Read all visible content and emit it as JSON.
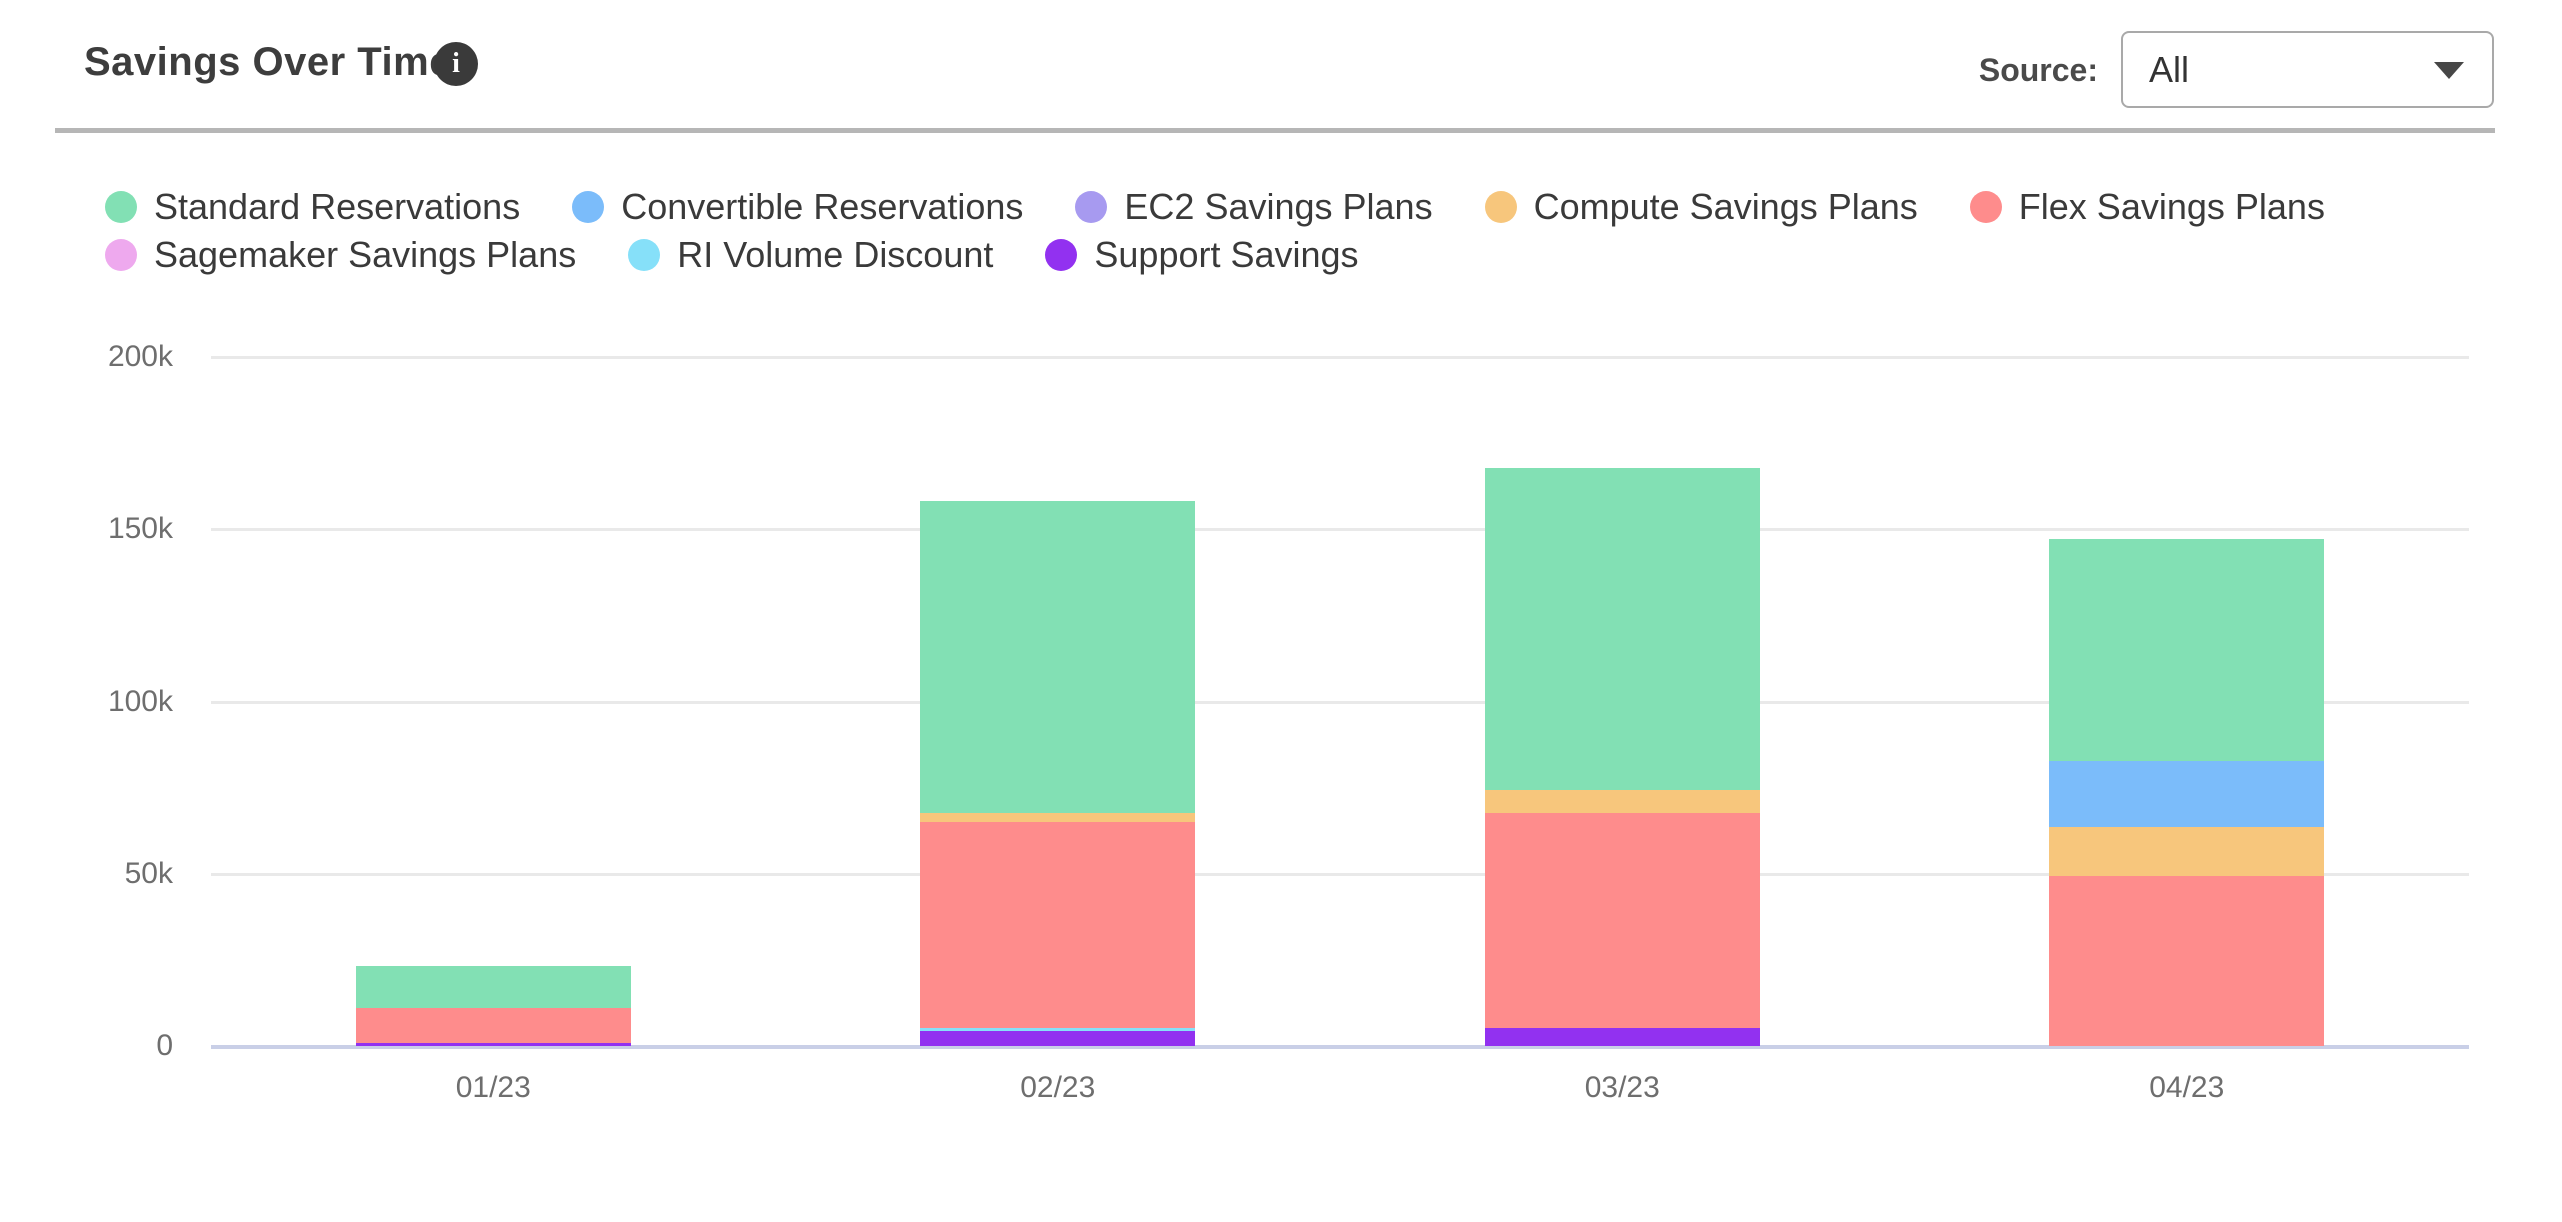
{
  "header": {
    "title": "Savings Over Time",
    "source_label": "Source:",
    "source_value": "All"
  },
  "chart_data": {
    "type": "bar",
    "stacked": true,
    "title": "Savings Over Time",
    "categories": [
      "01/23",
      "02/23",
      "03/23",
      "04/23"
    ],
    "series": [
      {
        "name": "Standard Reservations",
        "color": "#82e0b4",
        "values": [
          12300,
          90700,
          93500,
          64600
        ]
      },
      {
        "name": "Convertible Reservations",
        "color": "#7bbcfa",
        "values": [
          0,
          0,
          0,
          19000
        ]
      },
      {
        "name": "EC2 Savings Plans",
        "color": "#a79af0",
        "values": [
          0,
          0,
          0,
          0
        ]
      },
      {
        "name": "Compute Savings Plans",
        "color": "#f7c67c",
        "values": [
          0,
          2600,
          6700,
          14400
        ]
      },
      {
        "name": "Flex Savings Plans",
        "color": "#fe8c8c",
        "values": [
          9900,
          59800,
          62400,
          49300
        ]
      },
      {
        "name": "Sagemaker Savings Plans",
        "color": "#eea9ee",
        "values": [
          0,
          0,
          0,
          0
        ]
      },
      {
        "name": "RI Volume Discount",
        "color": "#86e0f9",
        "values": [
          0,
          700,
          0,
          0
        ]
      },
      {
        "name": "Support Savings",
        "color": "#9231f0",
        "values": [
          1000,
          4400,
          5100,
          0
        ]
      }
    ],
    "stack_order_bottom_to_top": [
      "Support Savings",
      "RI Volume Discount",
      "Sagemaker Savings Plans",
      "Flex Savings Plans",
      "Compute Savings Plans",
      "EC2 Savings Plans",
      "Convertible Reservations",
      "Standard Reservations"
    ],
    "totals": [
      23200,
      158200,
      167700,
      147300
    ],
    "ylim": [
      0,
      200000
    ],
    "yticks": [
      0,
      50000,
      100000,
      150000,
      200000
    ],
    "ytick_labels": [
      "0",
      "50k",
      "100k",
      "150k",
      "200k"
    ],
    "grid": true,
    "legend_position": "top",
    "legend_rows": [
      [
        "Standard Reservations",
        "Convertible Reservations",
        "EC2 Savings Plans",
        "Compute Savings Plans",
        "Flex Savings Plans"
      ],
      [
        "Sagemaker Savings Plans",
        "RI Volume Discount",
        "Support Savings"
      ]
    ],
    "colors": {
      "gridline": "#e9e9e9",
      "zero_axis": "#c9cfe7",
      "tick_label": "#6e6e6e",
      "legend_text": "#3a3a3a"
    }
  }
}
